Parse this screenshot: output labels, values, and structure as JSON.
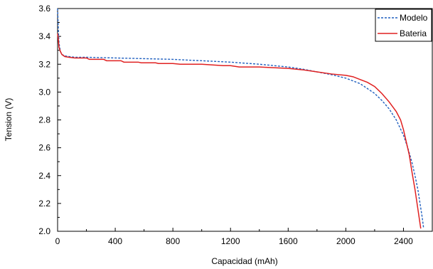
{
  "chart_data": {
    "type": "line",
    "xlabel": "Capacidad (mAh)",
    "ylabel": "Tension (V)",
    "xlim": [
      0,
      2600
    ],
    "ylim": [
      2.0,
      3.6
    ],
    "xticks": [
      0,
      400,
      800,
      1200,
      1600,
      2000,
      2400
    ],
    "yticks": [
      2.0,
      2.2,
      2.4,
      2.6,
      2.8,
      3.0,
      3.2,
      3.4,
      3.6
    ],
    "grid": false,
    "legend_position": "top-right",
    "series": [
      {
        "name": "Modelo",
        "color": "#1f5fbf",
        "style": "dashed",
        "x": [
          0,
          5,
          10,
          20,
          30,
          50,
          80,
          120,
          200,
          400,
          600,
          800,
          1000,
          1200,
          1400,
          1600,
          1700,
          1800,
          1900,
          2000,
          2100,
          2200,
          2250,
          2300,
          2350,
          2400,
          2430,
          2460,
          2480,
          2500,
          2515,
          2530,
          2540
        ],
        "y": [
          3.6,
          3.45,
          3.35,
          3.29,
          3.27,
          3.26,
          3.255,
          3.25,
          3.25,
          3.245,
          3.24,
          3.235,
          3.225,
          3.215,
          3.2,
          3.18,
          3.165,
          3.145,
          3.125,
          3.1,
          3.06,
          2.99,
          2.94,
          2.88,
          2.8,
          2.69,
          2.6,
          2.49,
          2.4,
          2.3,
          2.2,
          2.1,
          2.02
        ]
      },
      {
        "name": "Bateria",
        "color": "#e02020",
        "style": "solid",
        "x": [
          0,
          5,
          10,
          20,
          30,
          50,
          80,
          120,
          200,
          220,
          320,
          340,
          440,
          460,
          560,
          580,
          680,
          700,
          800,
          850,
          1000,
          1150,
          1200,
          1260,
          1400,
          1500,
          1600,
          1700,
          1800,
          1900,
          2000,
          2050,
          2100,
          2150,
          2200,
          2250,
          2300,
          2350,
          2380,
          2400,
          2420,
          2440,
          2460,
          2480,
          2500,
          2520
        ],
        "y": [
          3.42,
          3.38,
          3.32,
          3.29,
          3.27,
          3.255,
          3.25,
          3.245,
          3.245,
          3.235,
          3.235,
          3.225,
          3.225,
          3.215,
          3.215,
          3.21,
          3.21,
          3.205,
          3.205,
          3.2,
          3.2,
          3.19,
          3.19,
          3.18,
          3.18,
          3.175,
          3.17,
          3.16,
          3.145,
          3.13,
          3.12,
          3.11,
          3.09,
          3.07,
          3.04,
          2.99,
          2.93,
          2.86,
          2.8,
          2.73,
          2.64,
          2.55,
          2.42,
          2.3,
          2.16,
          2.02
        ]
      }
    ]
  }
}
